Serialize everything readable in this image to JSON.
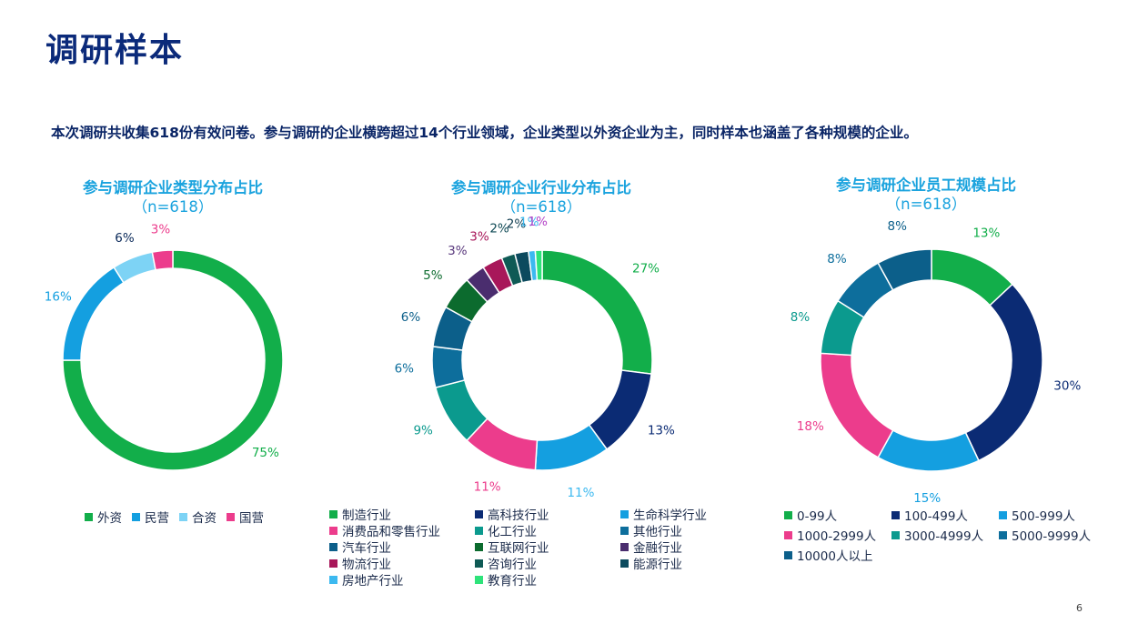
{
  "page": {
    "title": "调研样本",
    "summary": "本次调研共收集618份有效问卷。参与调研的企业横跨超过14个行业领域，企业类型以外资企业为主，同时样本也涵盖了各种规模的企业。",
    "page_number": "6"
  },
  "chart_data": [
    {
      "type": "pie",
      "title": "参与调研企业类型分布占比",
      "subtitle": "（n=618）",
      "categories": [
        "外资",
        "民营",
        "合资",
        "国营"
      ],
      "values": [
        75,
        16,
        6,
        3
      ],
      "labels": [
        "75%",
        "16%",
        "6%",
        "3%"
      ],
      "colors": [
        "#12ae4a",
        "#149fe0",
        "#7dd3f5",
        "#ec3c8c"
      ],
      "label_colors": [
        "#12ae4a",
        "#149fe0",
        "#0b2a5a",
        "#ec3c8c"
      ]
    },
    {
      "type": "pie",
      "title": "参与调研企业行业分布占比",
      "subtitle": "（n=618）",
      "categories": [
        "制造行业",
        "高科技行业",
        "生命科学行业",
        "消费品和零售行业",
        "化工行业",
        "其他行业",
        "汽车行业",
        "互联网行业",
        "金融行业",
        "物流行业",
        "咨询行业",
        "能源行业",
        "房地产行业",
        "教育行业"
      ],
      "values": [
        27,
        13,
        11,
        11,
        9,
        6,
        6,
        5,
        3,
        3,
        2,
        2,
        1,
        1
      ],
      "labels": [
        "27%",
        "13%",
        "11%",
        "11%",
        "9%",
        "6%",
        "6%",
        "5%",
        "3%",
        "3%",
        "2%",
        "2%",
        "1%",
        "1%"
      ],
      "colors": [
        "#12ae4a",
        "#0b2b74",
        "#149fe0",
        "#ec3c8c",
        "#0b9a8e",
        "#0d6e9c",
        "#0c5f8a",
        "#0c6b2e",
        "#4a2d6e",
        "#a8175a",
        "#0f5a55",
        "#0c4a5e",
        "#3cb9f0",
        "#2ee37a"
      ],
      "label_colors": [
        "#12ae4a",
        "#0b2b74",
        "#3cb9f0",
        "#ec3c8c",
        "#0b9a8e",
        "#0d6e9c",
        "#0c5f8a",
        "#0c6b2e",
        "#5a3a7e",
        "#a8175a",
        "#0f4a55",
        "#0c3a4e",
        "#3cb9f0",
        "#b444c8"
      ]
    },
    {
      "type": "pie",
      "title": "参与调研企业员工规模占比",
      "subtitle": "（n=618）",
      "categories": [
        "0-99人",
        "100-499人",
        "500-999人",
        "1000-2999人",
        "3000-4999人",
        "5000-9999人",
        "10000人以上"
      ],
      "values": [
        13,
        30,
        15,
        18,
        8,
        8,
        8
      ],
      "labels": [
        "13%",
        "30%",
        "15%",
        "18%",
        "8%",
        "8%",
        "8%"
      ],
      "colors": [
        "#12ae4a",
        "#0b2b74",
        "#149fe0",
        "#ec3c8c",
        "#0b9a8e",
        "#0d6e9c",
        "#0c5f8a"
      ],
      "label_colors": [
        "#12ae4a",
        "#0b2b74",
        "#149fe0",
        "#ec3c8c",
        "#0b9a8e",
        "#0d6e9c",
        "#0c5f8a"
      ]
    }
  ]
}
